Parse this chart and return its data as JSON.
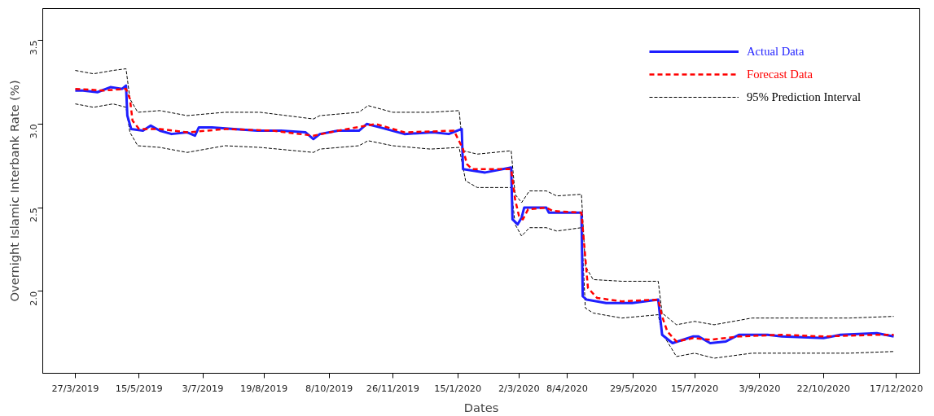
{
  "chart_data": {
    "type": "line",
    "xlabel": "Dates",
    "ylabel": "Overnight Islamic Interbank Rate (%)",
    "xlim": [
      "2019-03-02",
      "2021-01-04"
    ],
    "ylim": [
      1.51,
      3.69
    ],
    "xticks": [
      {
        "value": "2019-03-27",
        "label": "27/3/2019"
      },
      {
        "value": "2019-05-15",
        "label": "15/5/2019"
      },
      {
        "value": "2019-07-03",
        "label": "3/7/2019"
      },
      {
        "value": "2019-08-19",
        "label": "19/8/2019"
      },
      {
        "value": "2019-10-08",
        "label": "8/10/2019"
      },
      {
        "value": "2019-11-26",
        "label": "26/11/2019"
      },
      {
        "value": "2020-01-15",
        "label": "15/1/2020"
      },
      {
        "value": "2020-03-02",
        "label": "2/3/2020"
      },
      {
        "value": "2020-04-08",
        "label": "8/4/2020"
      },
      {
        "value": "2020-05-29",
        "label": "29/5/2020"
      },
      {
        "value": "2020-07-15",
        "label": "15/7/2020"
      },
      {
        "value": "2020-09-03",
        "label": "3/9/2020"
      },
      {
        "value": "2020-10-22",
        "label": "22/10/2020"
      },
      {
        "value": "2020-12-17",
        "label": "17/12/2020"
      }
    ],
    "yticks": [
      {
        "value": 2.0,
        "label": "2.0"
      },
      {
        "value": 2.5,
        "label": "2.5"
      },
      {
        "value": 3.0,
        "label": "3.0"
      },
      {
        "value": 3.5,
        "label": "3.5"
      }
    ],
    "grid": false,
    "legend": "top right",
    "marker": "none",
    "series": [
      {
        "name": "95% Prediction Interval",
        "color": "#000000",
        "line_style": "dashed",
        "x": [
          "2019-03-27",
          "2019-04-10",
          "2019-04-25",
          "2019-05-05",
          "2019-05-08",
          "2019-05-14",
          "2019-05-31",
          "2019-06-21",
          "2019-07-20",
          "2019-08-16",
          "2019-09-26",
          "2019-10-01",
          "2019-10-31",
          "2019-11-07",
          "2019-11-26",
          "2019-12-25",
          "2020-01-16",
          "2020-01-19",
          "2020-01-30",
          "2020-02-25",
          "2020-02-28",
          "2020-03-04",
          "2020-03-10",
          "2020-03-23",
          "2020-03-31",
          "2020-04-19",
          "2020-04-22",
          "2020-04-28",
          "2020-05-20",
          "2020-06-17",
          "2020-06-20",
          "2020-07-01",
          "2020-07-15",
          "2020-07-30",
          "2020-08-28",
          "2020-11-11",
          "2020-12-15"
        ],
        "values": [
          3.32,
          3.3,
          3.32,
          3.33,
          3.15,
          3.07,
          3.08,
          3.05,
          3.07,
          3.07,
          3.03,
          3.05,
          3.07,
          3.11,
          3.07,
          3.07,
          3.08,
          2.84,
          2.82,
          2.84,
          2.58,
          2.53,
          2.6,
          2.6,
          2.57,
          2.58,
          2.15,
          2.07,
          2.06,
          2.06,
          1.87,
          1.8,
          1.82,
          1.8,
          1.84,
          1.84,
          1.85
        ]
      },
      {
        "color": "#000000",
        "line_style": "dashed",
        "x": [
          "2019-03-27",
          "2019-04-10",
          "2019-04-25",
          "2019-05-05",
          "2019-05-08",
          "2019-05-14",
          "2019-05-31",
          "2019-06-21",
          "2019-07-20",
          "2019-08-16",
          "2019-09-26",
          "2019-10-01",
          "2019-10-31",
          "2019-11-07",
          "2019-11-26",
          "2019-12-25",
          "2020-01-16",
          "2020-01-21",
          "2020-01-30",
          "2020-02-25",
          "2020-02-28",
          "2020-03-04",
          "2020-03-10",
          "2020-03-23",
          "2020-03-31",
          "2020-04-19",
          "2020-04-22",
          "2020-04-28",
          "2020-05-20",
          "2020-06-17",
          "2020-06-20",
          "2020-07-01",
          "2020-07-15",
          "2020-07-30",
          "2020-08-28",
          "2020-11-11",
          "2020-12-15"
        ],
        "values": [
          3.12,
          3.1,
          3.12,
          3.1,
          2.95,
          2.87,
          2.86,
          2.83,
          2.87,
          2.86,
          2.83,
          2.85,
          2.87,
          2.9,
          2.87,
          2.85,
          2.86,
          2.66,
          2.62,
          2.62,
          2.4,
          2.33,
          2.38,
          2.38,
          2.36,
          2.38,
          1.9,
          1.87,
          1.84,
          1.86,
          1.75,
          1.61,
          1.63,
          1.6,
          1.63,
          1.63,
          1.64
        ]
      },
      {
        "name": "Actual Data",
        "color": "#1f1fff",
        "line_style": "solid",
        "x": [
          "2019-03-27",
          "2019-04-02",
          "2019-04-13",
          "2019-04-23",
          "2019-05-02",
          "2019-05-05",
          "2019-05-06",
          "2019-05-09",
          "2019-05-18",
          "2019-05-24",
          "2019-05-31",
          "2019-06-09",
          "2019-06-21",
          "2019-06-27",
          "2019-06-30",
          "2019-07-10",
          "2019-07-27",
          "2019-08-14",
          "2019-09-01",
          "2019-09-20",
          "2019-09-26",
          "2019-10-01",
          "2019-10-15",
          "2019-10-31",
          "2019-11-06",
          "2019-11-16",
          "2019-12-05",
          "2019-12-27",
          "2020-01-08",
          "2020-01-18",
          "2020-01-19",
          "2020-02-05",
          "2020-02-25",
          "2020-02-26",
          "2020-03-01",
          "2020-03-04",
          "2020-03-06",
          "2020-03-23",
          "2020-03-25",
          "2020-04-19",
          "2020-04-20",
          "2020-04-23",
          "2020-05-08",
          "2020-05-28",
          "2020-06-17",
          "2020-06-20",
          "2020-06-28",
          "2020-07-14",
          "2020-07-18",
          "2020-07-27",
          "2020-08-08",
          "2020-08-18",
          "2020-09-09",
          "2020-09-20",
          "2020-10-22",
          "2020-11-04",
          "2020-12-02",
          "2020-12-15"
        ],
        "values": [
          3.2,
          3.2,
          3.19,
          3.22,
          3.21,
          3.23,
          3.05,
          2.97,
          2.96,
          2.99,
          2.96,
          2.94,
          2.95,
          2.93,
          2.98,
          2.98,
          2.97,
          2.96,
          2.96,
          2.95,
          2.91,
          2.94,
          2.96,
          2.96,
          3.0,
          2.98,
          2.94,
          2.95,
          2.94,
          2.97,
          2.73,
          2.71,
          2.74,
          2.43,
          2.4,
          2.44,
          2.5,
          2.5,
          2.47,
          2.47,
          1.97,
          1.95,
          1.93,
          1.93,
          1.95,
          1.74,
          1.69,
          1.73,
          1.73,
          1.69,
          1.7,
          1.74,
          1.74,
          1.73,
          1.72,
          1.74,
          1.75,
          1.73
        ]
      },
      {
        "name": "Forecast Data",
        "color": "#ff0000",
        "line_style": "dashed",
        "x": [
          "2019-03-27",
          "2019-04-18",
          "2019-05-05",
          "2019-05-08",
          "2019-05-10",
          "2019-05-15",
          "2019-05-31",
          "2019-06-21",
          "2019-07-21",
          "2019-08-26",
          "2019-09-26",
          "2019-10-15",
          "2019-11-13",
          "2019-12-05",
          "2020-01-12",
          "2020-01-19",
          "2020-01-22",
          "2020-01-26",
          "2020-02-25",
          "2020-02-28",
          "2020-03-02",
          "2020-03-05",
          "2020-03-09",
          "2020-03-23",
          "2020-03-28",
          "2020-04-19",
          "2020-04-22",
          "2020-04-24",
          "2020-05-01",
          "2020-05-20",
          "2020-06-17",
          "2020-06-20",
          "2020-06-24",
          "2020-07-01",
          "2020-07-14",
          "2020-07-27",
          "2020-08-18",
          "2020-09-20",
          "2020-10-22",
          "2020-12-02",
          "2020-12-15"
        ],
        "values": [
          3.21,
          3.2,
          3.21,
          3.15,
          3.02,
          2.97,
          2.97,
          2.95,
          2.97,
          2.96,
          2.93,
          2.96,
          3.0,
          2.95,
          2.96,
          2.85,
          2.76,
          2.73,
          2.73,
          2.55,
          2.45,
          2.43,
          2.49,
          2.5,
          2.48,
          2.47,
          2.2,
          2.02,
          1.96,
          1.94,
          1.95,
          1.85,
          1.76,
          1.7,
          1.72,
          1.71,
          1.73,
          1.74,
          1.73,
          1.74,
          1.74
        ]
      }
    ]
  }
}
